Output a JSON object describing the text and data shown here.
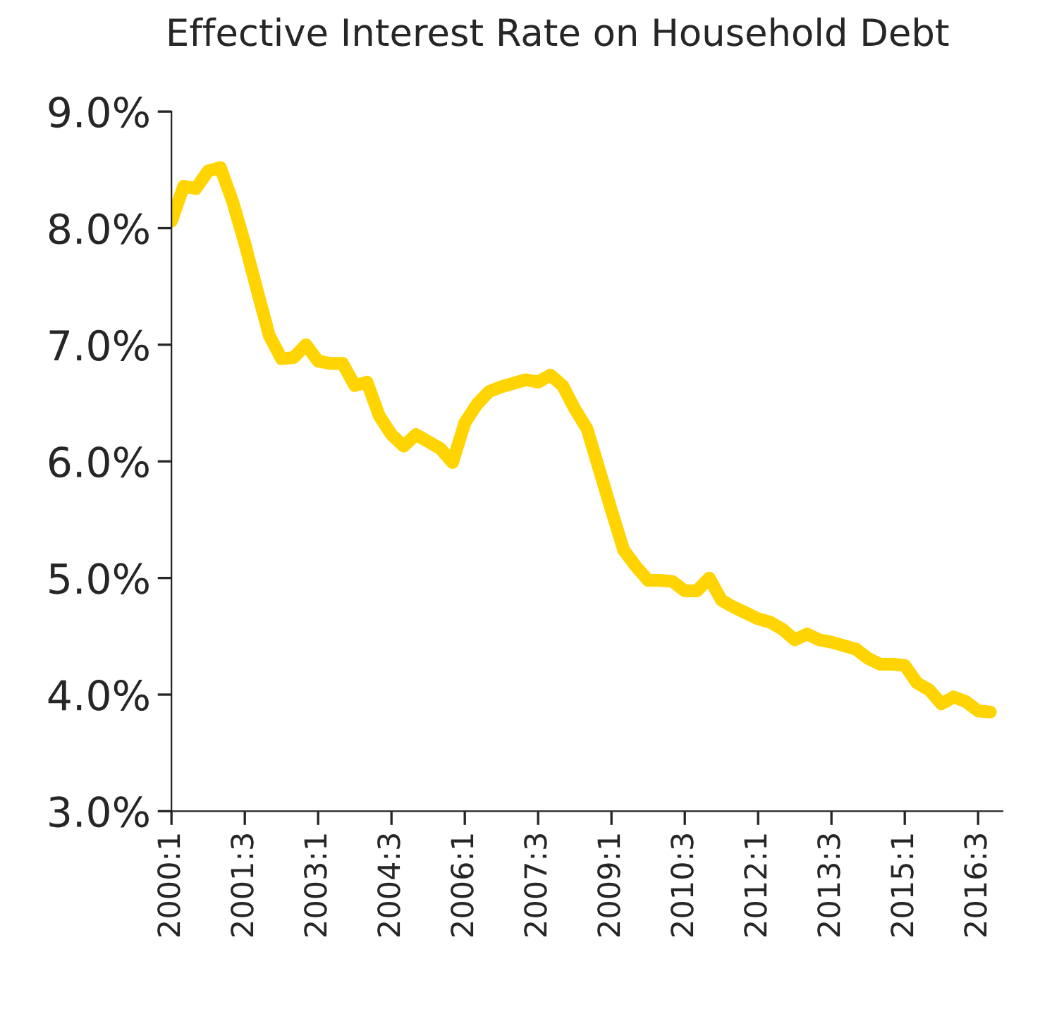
{
  "chart_data": {
    "type": "line",
    "title": "Effective Interest Rate on Household Debt",
    "categories": [
      "2000:1",
      null,
      null,
      null,
      null,
      null,
      "2001:3",
      null,
      null,
      null,
      null,
      null,
      "2003:1",
      null,
      null,
      null,
      null,
      null,
      "2004:3",
      null,
      null,
      null,
      null,
      null,
      "2006:1",
      null,
      null,
      null,
      null,
      null,
      "2007:3",
      null,
      null,
      null,
      null,
      null,
      "2009:1",
      null,
      null,
      null,
      null,
      null,
      "2010:3",
      null,
      null,
      null,
      null,
      null,
      "2012:1",
      null,
      null,
      null,
      null,
      null,
      "2013:3",
      null,
      null,
      null,
      null,
      null,
      "2015:1",
      null,
      null,
      null,
      null,
      null,
      "2016:3",
      null
    ],
    "series": [
      {
        "color": "#ffd400",
        "values": [
          8.06,
          8.36,
          8.34,
          8.49,
          8.52,
          8.23,
          7.87,
          7.47,
          7.08,
          6.88,
          6.89,
          7.0,
          6.86,
          6.84,
          6.84,
          6.65,
          6.68,
          6.39,
          6.23,
          6.13,
          6.23,
          6.17,
          6.11,
          5.99,
          6.33,
          6.49,
          6.6,
          6.64,
          6.67,
          6.7,
          6.68,
          6.74,
          6.65,
          6.45,
          6.28,
          5.93,
          5.58,
          5.24,
          5.1,
          4.98,
          4.98,
          4.97,
          4.89,
          4.89,
          5.0,
          4.81,
          4.75,
          4.7,
          4.65,
          4.62,
          4.56,
          4.47,
          4.52,
          4.47,
          4.45,
          4.42,
          4.39,
          4.31,
          4.26,
          4.26,
          4.25,
          4.1,
          4.04,
          3.92,
          3.98,
          3.94,
          3.86,
          3.85
        ]
      }
    ],
    "ylim": [
      3,
      9
    ],
    "yticks": [
      {
        "value": 3,
        "label": "3.0%"
      },
      {
        "value": 4,
        "label": "4.0%"
      },
      {
        "value": 5,
        "label": "5.0%"
      },
      {
        "value": 6,
        "label": "6.0%"
      },
      {
        "value": 7,
        "label": "7.0%"
      },
      {
        "value": 8,
        "label": "8.0%"
      },
      {
        "value": 9,
        "label": "9.0%"
      }
    ],
    "grid": false,
    "marker": "none",
    "line_style": "solid"
  }
}
